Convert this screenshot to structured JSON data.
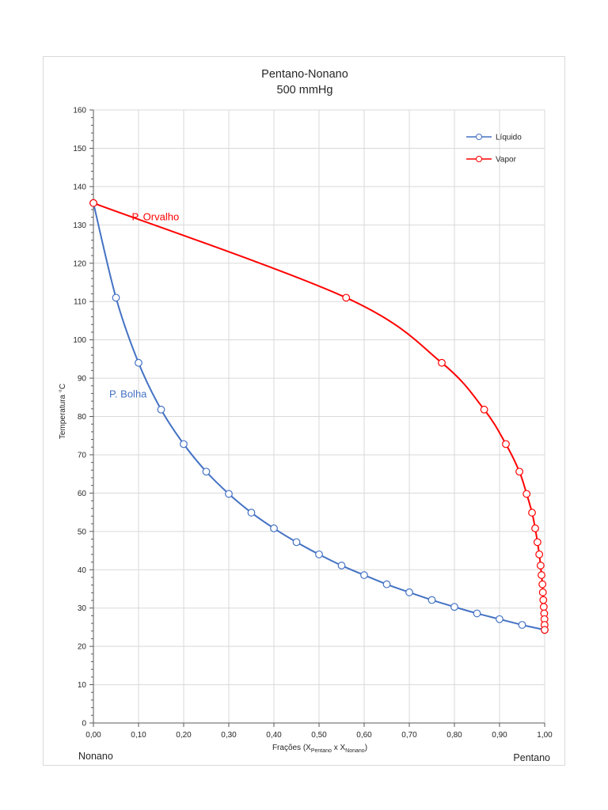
{
  "chart_data": {
    "type": "line",
    "title": "Pentano-Nonano",
    "subtitle": "500 mmHg",
    "xlabel": {
      "prefix": "Frações (X",
      "sub1": "Pentano",
      "mid": " x X",
      "sub2": "Nonano",
      "suffix": ")"
    },
    "ylabel": "Temperatura °C",
    "xlim": [
      0,
      1
    ],
    "ylim": [
      0,
      160
    ],
    "x_ticks": [
      "0,00",
      "0,10",
      "0,20",
      "0,30",
      "0,40",
      "0,50",
      "0,60",
      "0,70",
      "0,80",
      "0,90",
      "1,00"
    ],
    "y_ticks": [
      "0",
      "10",
      "20",
      "30",
      "40",
      "50",
      "60",
      "70",
      "80",
      "90",
      "100",
      "110",
      "120",
      "130",
      "140",
      "150",
      "160"
    ],
    "grid": true,
    "legend_position": "top-right",
    "series": [
      {
        "name": "Líquido",
        "color": "#4472c4",
        "x": [
          0,
          0.05,
          0.1,
          0.15,
          0.2,
          0.25,
          0.3,
          0.35,
          0.4,
          0.45,
          0.5,
          0.55,
          0.6,
          0.65,
          0.7,
          0.75,
          0.8,
          0.85,
          0.9,
          0.95,
          1.0
        ],
        "y": [
          135.7,
          111.0,
          94.0,
          81.8,
          72.8,
          65.6,
          59.8,
          54.9,
          50.8,
          47.2,
          44.0,
          41.1,
          38.6,
          36.2,
          34.1,
          32.1,
          30.3,
          28.6,
          27.1,
          25.6,
          24.3
        ]
      },
      {
        "name": "Vapor",
        "color": "#ff0000",
        "x": [
          0,
          0.56,
          0.772,
          0.866,
          0.914,
          0.944,
          0.96,
          0.972,
          0.979,
          0.984,
          0.988,
          0.991,
          0.993,
          0.995,
          0.996,
          0.997,
          0.998,
          0.999,
          0.9995,
          0.9998,
          1.0
        ],
        "y": [
          135.7,
          111.0,
          94.0,
          81.8,
          72.8,
          65.6,
          59.8,
          54.9,
          50.8,
          47.2,
          44.0,
          41.1,
          38.6,
          36.2,
          34.1,
          32.1,
          30.3,
          28.6,
          27.1,
          25.6,
          24.3
        ]
      }
    ],
    "annotations": [
      {
        "text": "P. Orvalho",
        "color": "#ff0000",
        "x": 0.085,
        "y": 131.2
      },
      {
        "text": "P. Bolha",
        "color": "#4472c4",
        "x": 0.035,
        "y": 85.0
      }
    ]
  },
  "corners": {
    "left": "Nonano",
    "right": "Pentano"
  }
}
